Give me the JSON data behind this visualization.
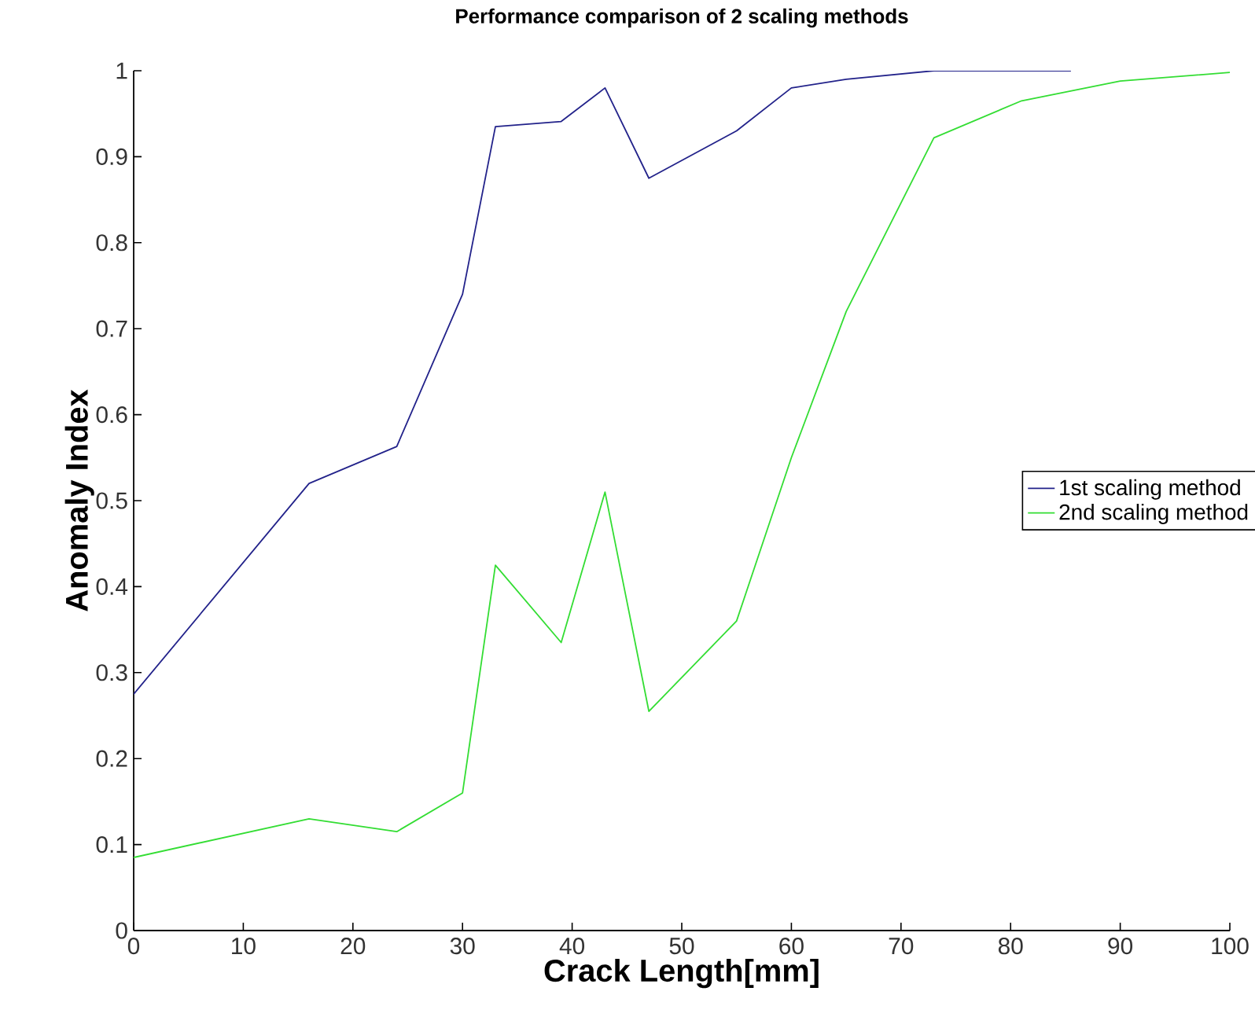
{
  "chart_data": {
    "type": "line",
    "title": "Performance comparison of 2 scaling methods",
    "xlabel": "Crack Length[mm]",
    "ylabel": "Anomaly Index",
    "xlim": [
      0,
      100
    ],
    "xticks": [
      0,
      10,
      20,
      30,
      40,
      50,
      60,
      70,
      80,
      90,
      100
    ],
    "ylim": [
      0,
      1
    ],
    "yticks": [
      0,
      0.1,
      0.2,
      0.3,
      0.4,
      0.5,
      0.6,
      0.7,
      0.8,
      0.9,
      1
    ],
    "grid": false,
    "legend": "right",
    "line_style": "solid",
    "marker": "none",
    "series": [
      {
        "name": "1st scaling method",
        "color": "#22228a",
        "x": [
          0,
          16,
          24,
          30,
          33,
          39,
          43,
          47,
          55,
          60,
          65,
          73,
          85.5
        ],
        "values": [
          0.275,
          0.52,
          0.563,
          0.74,
          0.935,
          0.941,
          0.98,
          0.875,
          0.93,
          0.98,
          0.99,
          1.0,
          1.0
        ]
      },
      {
        "name": "2nd scaling method",
        "color": "#33dd33",
        "x": [
          0,
          16,
          24,
          30,
          33,
          39,
          43,
          47,
          55,
          60,
          65,
          73,
          81,
          90,
          100
        ],
        "values": [
          0.085,
          0.13,
          0.115,
          0.16,
          0.425,
          0.335,
          0.51,
          0.255,
          0.36,
          0.55,
          0.72,
          0.922,
          0.965,
          0.988,
          0.998
        ]
      }
    ]
  }
}
